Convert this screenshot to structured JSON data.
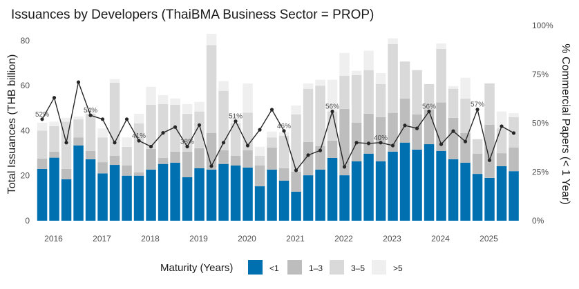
{
  "chart_data": {
    "type": "bar",
    "stacked": true,
    "title": "Issuances by Developers (ThaiBMA Business Sector = PROP)",
    "xlabel": "",
    "ylabel": "Total Issuances (THB billion)",
    "y2label": "% Commercial Papers (< 1 Year)",
    "ylim": [
      0,
      86.7
    ],
    "y2lim": [
      0,
      100
    ],
    "yticks": [
      "0",
      "20",
      "40",
      "60",
      "80"
    ],
    "y2ticks": [
      "0%",
      "25%",
      "50%",
      "75%",
      "100%"
    ],
    "xticks": [
      "2016",
      "2017",
      "2018",
      "2019",
      "2020",
      "2021",
      "2022",
      "2023",
      "2024",
      "2025"
    ],
    "categories": [
      "2016Q1",
      "2016Q2",
      "2016Q3",
      "2016Q4",
      "2017Q1",
      "2017Q2",
      "2017Q3",
      "2017Q4",
      "2018Q1",
      "2018Q2",
      "2018Q3",
      "2018Q4",
      "2019Q1",
      "2019Q2",
      "2019Q3",
      "2019Q4",
      "2020Q1",
      "2020Q2",
      "2020Q3",
      "2020Q4",
      "2021Q1",
      "2021Q2",
      "2021Q3",
      "2021Q4",
      "2022Q1",
      "2022Q2",
      "2022Q3",
      "2022Q4",
      "2023Q1",
      "2023Q2",
      "2023Q3",
      "2023Q4",
      "2024Q1",
      "2024Q2",
      "2024Q3",
      "2024Q4",
      "2025Q1",
      "2025Q2",
      "2025Q3",
      "2025Q4"
    ],
    "series": [
      {
        "name": "<1",
        "color": "#0070B0",
        "values": [
          23.0,
          28.0,
          18.4,
          33.4,
          27.3,
          21.0,
          24.8,
          20.0,
          20.0,
          22.7,
          25.2,
          25.8,
          19.3,
          23.3,
          22.7,
          25.2,
          24.5,
          23.6,
          15.3,
          22.7,
          17.8,
          12.9,
          20.2,
          22.7,
          27.9,
          20.2,
          26.4,
          29.8,
          26.4,
          30.7,
          34.7,
          31.6,
          34.0,
          31.0,
          27.3,
          25.8,
          20.8,
          19.0,
          24.2,
          22.0
        ]
      },
      {
        "name": "1–3",
        "color": "#BDBDBD",
        "values": [
          4.6,
          2.7,
          4.6,
          3.6,
          3.7,
          5.0,
          4.0,
          4.5,
          1.5,
          9.2,
          2.7,
          4.9,
          11.4,
          8.9,
          16.3,
          6.1,
          4.3,
          7.7,
          9.2,
          9.8,
          5.5,
          8.9,
          14.8,
          10.4,
          7.7,
          29.5,
          17.2,
          17.7,
          19.6,
          17.2,
          19.6,
          15.6,
          15.4,
          21.5,
          18.4,
          13.2,
          9.0,
          23.6,
          5.8,
          10.5
        ]
      },
      {
        "name": "3–5",
        "color": "#D9D9D9",
        "values": [
          12.4,
          11.3,
          21.0,
          8.0,
          16.5,
          11.0,
          32.5,
          8.3,
          21.7,
          19.6,
          23.9,
          20.8,
          16.8,
          16.3,
          39.0,
          26.4,
          14.4,
          16.7,
          4.3,
          4.5,
          14.4,
          25.4,
          23.6,
          26.9,
          12.9,
          14.7,
          21.1,
          19.4,
          14.7,
          30.6,
          16.4,
          19.7,
          11.3,
          23.8,
          12.9,
          15.3,
          6.4,
          18.4,
          11.0,
          13.5
        ]
      },
      {
        "name": ">5",
        "color": "#EFEFEF",
        "values": [
          3.5,
          2.0,
          1.7,
          1.3,
          1.5,
          4.0,
          1.6,
          4.2,
          4.3,
          8.0,
          4.0,
          2.8,
          4.3,
          4.3,
          5.0,
          4.3,
          3.8,
          13.0,
          4.0,
          2.6,
          1.6,
          4.0,
          2.4,
          2.6,
          14.1,
          10.1,
          1.9,
          8.6,
          4.9,
          2.5,
          0.0,
          0.0,
          0.0,
          2.4,
          1.2,
          9.2,
          0.0,
          0.0,
          7.5,
          1.8
        ]
      }
    ],
    "line": {
      "name": "% Commercial Papers (< 1 Year)",
      "axis": "right",
      "color": "#262626",
      "values": [
        52,
        63,
        40,
        71,
        54,
        52,
        40,
        52,
        41,
        38,
        45,
        48,
        38,
        49,
        28,
        40,
        51,
        38.5,
        46.6,
        56.9,
        46,
        25.8,
        33.6,
        36,
        56,
        27.6,
        40,
        39.6,
        40,
        38.5,
        48.8,
        47.3,
        56,
        39.2,
        45.9,
        40.6,
        57,
        31,
        48.4,
        44.9
      ],
      "labels": [
        {
          "index": 0,
          "text": "52%"
        },
        {
          "index": 4,
          "text": "54%"
        },
        {
          "index": 8,
          "text": "41%"
        },
        {
          "index": 12,
          "text": "38%"
        },
        {
          "index": 16,
          "text": "51%"
        },
        {
          "index": 20,
          "text": "46%"
        },
        {
          "index": 24,
          "text": "56%"
        },
        {
          "index": 28,
          "text": "40%"
        },
        {
          "index": 32,
          "text": "56%"
        },
        {
          "index": 36,
          "text": "57%"
        }
      ]
    },
    "legend": {
      "title": "Maturity (Years)",
      "position": "bottom",
      "items": [
        "<1",
        "1–3",
        "3–5",
        ">5"
      ]
    },
    "grid": false
  }
}
